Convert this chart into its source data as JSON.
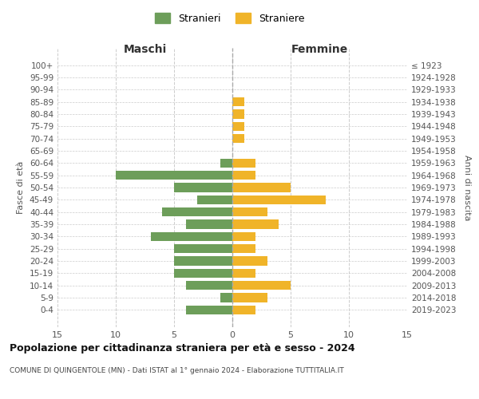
{
  "age_groups": [
    "100+",
    "95-99",
    "90-94",
    "85-89",
    "80-84",
    "75-79",
    "70-74",
    "65-69",
    "60-64",
    "55-59",
    "50-54",
    "45-49",
    "40-44",
    "35-39",
    "30-34",
    "25-29",
    "20-24",
    "15-19",
    "10-14",
    "5-9",
    "0-4"
  ],
  "birth_years": [
    "≤ 1923",
    "1924-1928",
    "1929-1933",
    "1934-1938",
    "1939-1943",
    "1944-1948",
    "1949-1953",
    "1954-1958",
    "1959-1963",
    "1964-1968",
    "1969-1973",
    "1974-1978",
    "1979-1983",
    "1984-1988",
    "1989-1993",
    "1994-1998",
    "1999-2003",
    "2004-2008",
    "2009-2013",
    "2014-2018",
    "2019-2023"
  ],
  "males": [
    0,
    0,
    0,
    0,
    0,
    0,
    0,
    0,
    1,
    10,
    5,
    3,
    6,
    4,
    7,
    5,
    5,
    5,
    4,
    1,
    4
  ],
  "females": [
    0,
    0,
    0,
    1,
    1,
    1,
    1,
    0,
    2,
    2,
    5,
    8,
    3,
    4,
    2,
    2,
    3,
    2,
    5,
    3,
    2
  ],
  "male_color": "#6d9e5a",
  "female_color": "#f0b429",
  "title": "Popolazione per cittadinanza straniera per età e sesso - 2024",
  "subtitle": "COMUNE DI QUINGENTOLE (MN) - Dati ISTAT al 1° gennaio 2024 - Elaborazione TUTTITALIA.IT",
  "legend_male": "Stranieri",
  "legend_female": "Straniere",
  "xlabel_left": "Maschi",
  "xlabel_right": "Femmine",
  "ylabel_left": "Fasce di età",
  "ylabel_right": "Anni di nascita",
  "xlim": 15,
  "background_color": "#ffffff",
  "grid_color": "#cccccc"
}
